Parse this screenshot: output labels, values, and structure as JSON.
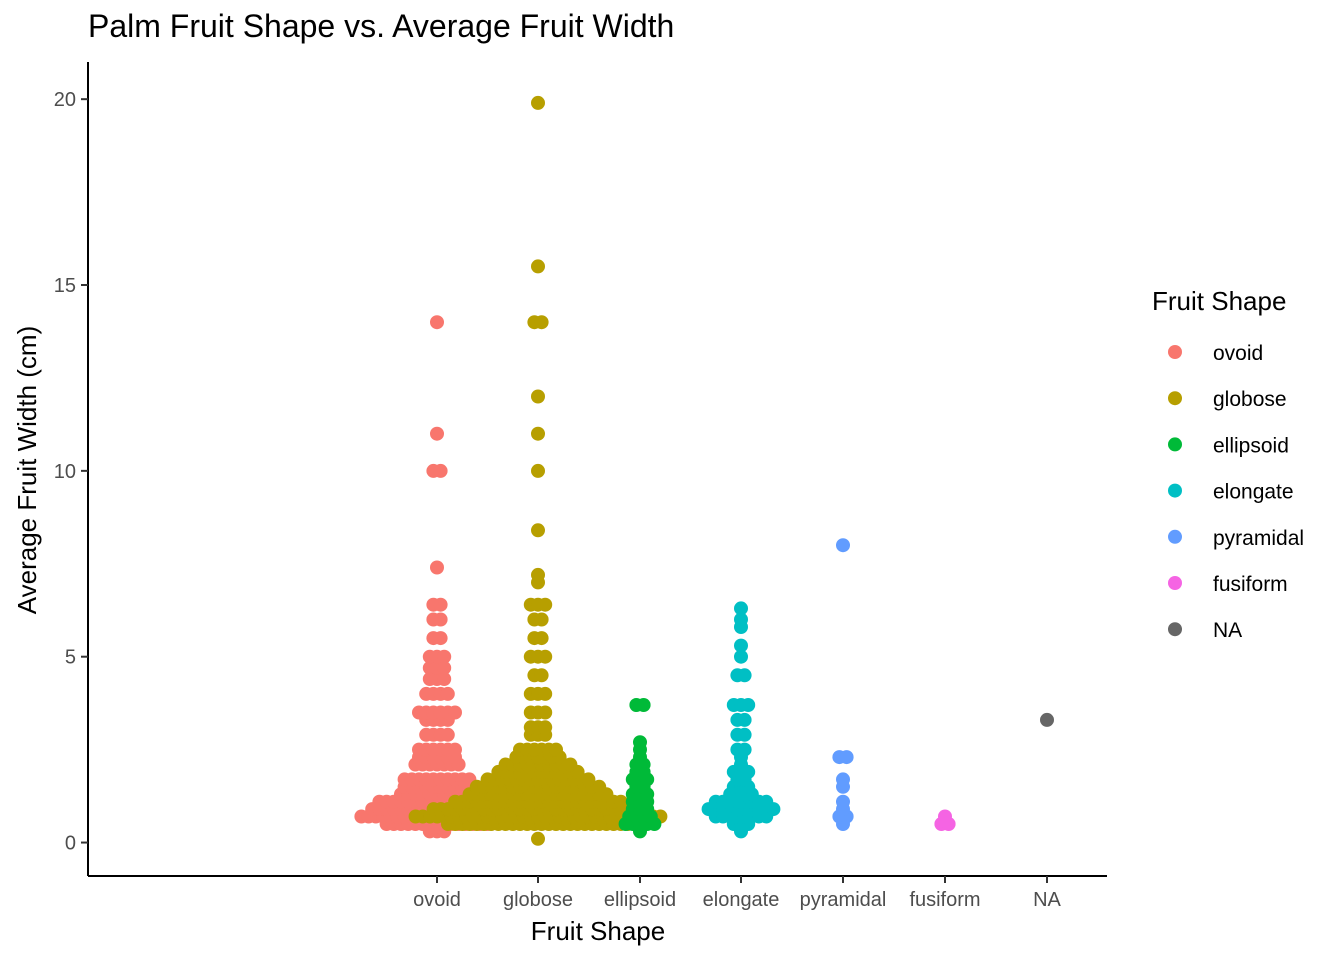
{
  "chart_data": {
    "type": "scatter",
    "title": "Palm Fruit Shape vs. Average Fruit Width",
    "xlabel": "Fruit Shape",
    "ylabel": "Average Fruit Width (cm)",
    "categories": [
      "ovoid",
      "globose",
      "ellipsoid",
      "elongate",
      "pyramidal",
      "fusiform",
      "NA"
    ],
    "ylim": [
      -0.9,
      21
    ],
    "yticks": [
      0,
      5,
      10,
      15,
      20
    ],
    "grid": false,
    "legend": {
      "title": "Fruit Shape",
      "position": "right",
      "entries": [
        "ovoid",
        "globose",
        "ellipsoid",
        "elongate",
        "pyramidal",
        "fusiform",
        "NA"
      ]
    },
    "colors": {
      "ovoid": "#F8766D",
      "globose": "#B79F00",
      "ellipsoid": "#00BA38",
      "elongate": "#00BFC4",
      "pyramidal": "#619CFF",
      "fusiform": "#F564E3",
      "NA": "#666666"
    },
    "series": [
      {
        "name": "ovoid",
        "bins": [
          [
            0.3,
            3
          ],
          [
            0.5,
            15
          ],
          [
            0.7,
            22
          ],
          [
            0.9,
            19
          ],
          [
            1.1,
            17
          ],
          [
            1.3,
            11
          ],
          [
            1.5,
            10
          ],
          [
            1.7,
            10
          ],
          [
            2.1,
            7
          ],
          [
            2.3,
            6
          ],
          [
            2.5,
            6
          ],
          [
            2.9,
            4
          ],
          [
            3.3,
            4
          ],
          [
            3.5,
            6
          ],
          [
            4.0,
            4
          ],
          [
            4.4,
            3
          ],
          [
            4.7,
            3
          ],
          [
            5.0,
            3
          ],
          [
            5.5,
            2
          ],
          [
            6.0,
            2
          ],
          [
            6.4,
            2
          ],
          [
            7.4,
            1
          ],
          [
            10.0,
            2
          ],
          [
            11.0,
            1
          ],
          [
            14.0,
            1
          ]
        ]
      },
      {
        "name": "globose",
        "bins": [
          [
            0.1,
            1
          ],
          [
            0.5,
            26
          ],
          [
            0.7,
            35
          ],
          [
            0.9,
            30
          ],
          [
            1.1,
            24
          ],
          [
            1.3,
            20
          ],
          [
            1.5,
            18
          ],
          [
            1.7,
            15
          ],
          [
            1.9,
            12
          ],
          [
            2.1,
            10
          ],
          [
            2.3,
            7
          ],
          [
            2.5,
            6
          ],
          [
            2.9,
            3
          ],
          [
            3.1,
            3
          ],
          [
            3.5,
            3
          ],
          [
            4.0,
            3
          ],
          [
            4.5,
            2
          ],
          [
            5.0,
            3
          ],
          [
            5.5,
            2
          ],
          [
            6.0,
            2
          ],
          [
            6.4,
            3
          ],
          [
            7.0,
            1
          ],
          [
            7.2,
            1
          ],
          [
            8.4,
            1
          ],
          [
            10.0,
            1
          ],
          [
            11.0,
            1
          ],
          [
            12.0,
            1
          ],
          [
            14.0,
            2
          ],
          [
            15.5,
            1
          ],
          [
            19.9,
            1
          ]
        ]
      },
      {
        "name": "ellipsoid",
        "bins": [
          [
            0.3,
            1
          ],
          [
            0.5,
            5
          ],
          [
            0.7,
            4
          ],
          [
            0.9,
            3
          ],
          [
            1.1,
            3
          ],
          [
            1.3,
            3
          ],
          [
            1.5,
            2
          ],
          [
            1.7,
            3
          ],
          [
            1.9,
            2
          ],
          [
            2.1,
            2
          ],
          [
            2.3,
            1
          ],
          [
            2.5,
            1
          ],
          [
            2.7,
            1
          ],
          [
            3.7,
            2
          ]
        ]
      },
      {
        "name": "elongate",
        "bins": [
          [
            0.3,
            1
          ],
          [
            0.5,
            3
          ],
          [
            0.7,
            8
          ],
          [
            0.9,
            10
          ],
          [
            1.1,
            8
          ],
          [
            1.3,
            4
          ],
          [
            1.5,
            3
          ],
          [
            1.7,
            2
          ],
          [
            1.9,
            3
          ],
          [
            2.1,
            1
          ],
          [
            2.3,
            1
          ],
          [
            2.5,
            2
          ],
          [
            2.9,
            2
          ],
          [
            3.3,
            2
          ],
          [
            3.7,
            3
          ],
          [
            4.5,
            2
          ],
          [
            5.0,
            1
          ],
          [
            5.3,
            1
          ],
          [
            5.8,
            1
          ],
          [
            6.0,
            1
          ],
          [
            6.3,
            1
          ]
        ]
      },
      {
        "name": "pyramidal",
        "bins": [
          [
            0.5,
            1
          ],
          [
            0.7,
            2
          ],
          [
            0.9,
            1
          ],
          [
            1.1,
            1
          ],
          [
            1.5,
            1
          ],
          [
            1.7,
            1
          ],
          [
            2.3,
            2
          ],
          [
            8.0,
            1
          ]
        ]
      },
      {
        "name": "fusiform",
        "bins": [
          [
            0.5,
            2
          ],
          [
            0.7,
            1
          ]
        ]
      },
      {
        "name": "NA",
        "bins": [
          [
            3.3,
            1
          ]
        ]
      }
    ]
  }
}
